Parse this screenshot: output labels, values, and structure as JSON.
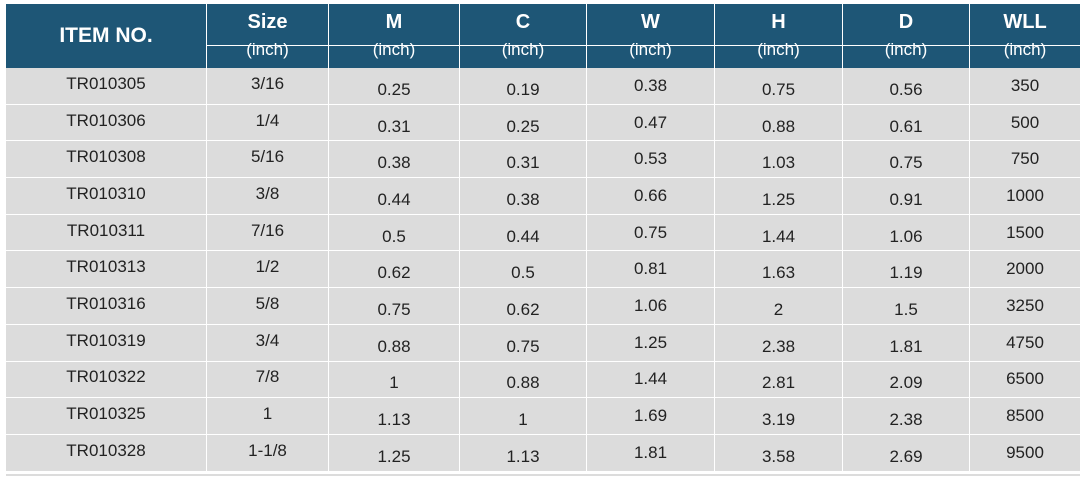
{
  "header": {
    "item_no": "ITEM NO.",
    "columns": [
      {
        "title": "Size",
        "unit": "(inch)"
      },
      {
        "title": "M",
        "unit": "(inch)"
      },
      {
        "title": "C",
        "unit": "(inch)"
      },
      {
        "title": "W",
        "unit": "(inch)"
      },
      {
        "title": "H",
        "unit": "(inch)"
      },
      {
        "title": "D",
        "unit": "(inch)"
      },
      {
        "title": "WLL",
        "unit": "(inch)"
      }
    ]
  },
  "rows": [
    [
      "TR010305",
      "3/16",
      "0.25",
      "0.19",
      "0.38",
      "0.75",
      "0.56",
      "350"
    ],
    [
      "TR010306",
      "1/4",
      "0.31",
      "0.25",
      "0.47",
      "0.88",
      "0.61",
      "500"
    ],
    [
      "TR010308",
      "5/16",
      "0.38",
      "0.31",
      "0.53",
      "1.03",
      "0.75",
      "750"
    ],
    [
      "TR010310",
      "3/8",
      "0.44",
      "0.38",
      "0.66",
      "1.25",
      "0.91",
      "1000"
    ],
    [
      "TR010311",
      "7/16",
      "0.5",
      "0.44",
      "0.75",
      "1.44",
      "1.06",
      "1500"
    ],
    [
      "TR010313",
      "1/2",
      "0.62",
      "0.5",
      "0.81",
      "1.63",
      "1.19",
      "2000"
    ],
    [
      "TR010316",
      "5/8",
      "0.75",
      "0.62",
      "1.06",
      "2",
      "1.5",
      "3250"
    ],
    [
      "TR010319",
      "3/4",
      "0.88",
      "0.75",
      "1.25",
      "2.38",
      "1.81",
      "4750"
    ],
    [
      "TR010322",
      "7/8",
      "1",
      "0.88",
      "1.44",
      "2.81",
      "2.09",
      "6500"
    ],
    [
      "TR010325",
      "1",
      "1.13",
      "1",
      "1.69",
      "3.19",
      "2.38",
      "8500"
    ],
    [
      "TR010328",
      "1-1/8",
      "1.25",
      "1.13",
      "1.81",
      "3.58",
      "2.69",
      "9500"
    ]
  ],
  "colors": {
    "header_bg": "#1e5676",
    "row_bg": "#dcdcdc",
    "text": "#222222",
    "header_text": "#ffffff"
  }
}
